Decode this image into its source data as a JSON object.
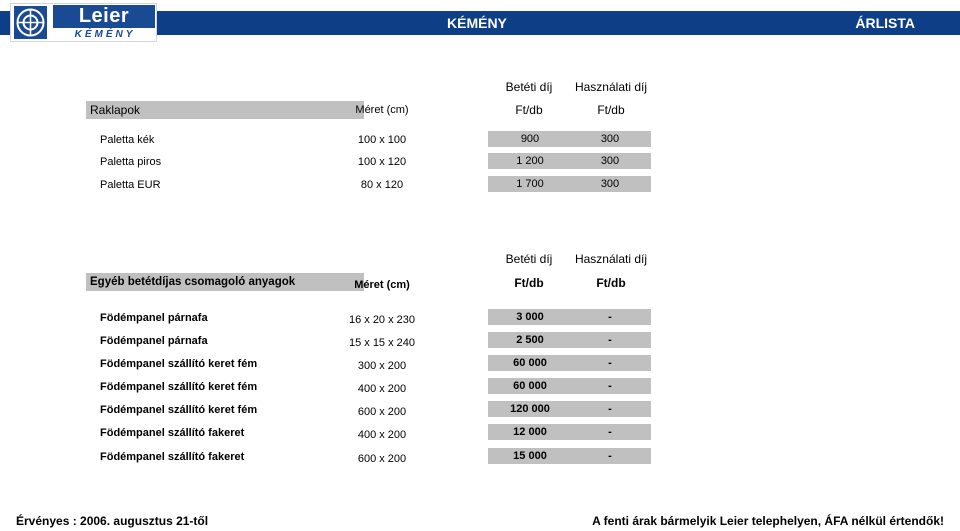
{
  "header": {
    "logo_text": "Leier",
    "logo_subtext": "KÉMÉNY",
    "title": "KÉMÉNY",
    "right_title": "ÁRLISTA"
  },
  "colors": {
    "header_bar": "#0d3e86",
    "row_fill": "#c0c0c0"
  },
  "section1": {
    "deposit_header": "Betéti díj",
    "usage_header": "Használati díj",
    "title": "Raklapok",
    "size_header": "Méret (cm)",
    "deposit_unit": "Ft/db",
    "usage_unit": "Ft/db",
    "rows": [
      {
        "name": "Paletta kék",
        "size": "100 x 100",
        "deposit": "900",
        "usage": "300"
      },
      {
        "name": "Paletta piros",
        "size": "100 x 120",
        "deposit": "1 200",
        "usage": "300"
      },
      {
        "name": "Paletta EUR",
        "size": "80 x 120",
        "deposit": "1 700",
        "usage": "300"
      }
    ]
  },
  "section2": {
    "deposit_header": "Betéti díj",
    "usage_header": "Használati díj",
    "title": "Egyéb betétdíjas csomagoló anyagok",
    "size_header": "Méret (cm)",
    "deposit_unit": "Ft/db",
    "usage_unit": "Ft/db",
    "rows": [
      {
        "name": "Födémpanel párnafa",
        "size": "16 x 20 x 230",
        "deposit": "3 000",
        "usage": "-"
      },
      {
        "name": "Födémpanel párnafa",
        "size": "15 x 15 x 240",
        "deposit": "2 500",
        "usage": "-"
      },
      {
        "name": "Födémpanel szállító keret fém",
        "size": "300 x 200",
        "deposit": "60 000",
        "usage": "-"
      },
      {
        "name": "Födémpanel szállító keret fém",
        "size": "400 x 200",
        "deposit": "60 000",
        "usage": "-"
      },
      {
        "name": "Födémpanel szállító keret fém",
        "size": "600 x 200",
        "deposit": "120 000",
        "usage": "-"
      },
      {
        "name": "Födémpanel szállító fakeret",
        "size": "400 x 200",
        "deposit": "12 000",
        "usage": "-"
      },
      {
        "name": "Födémpanel szállító fakeret",
        "size": "600 x 200",
        "deposit": "15 000",
        "usage": "-"
      }
    ]
  },
  "footer": {
    "validity": "Érvényes : 2006. augusztus 21-től",
    "note": "A fenti árak bármelyik Leier telephelyen, ÁFA nélkül értendők!"
  }
}
